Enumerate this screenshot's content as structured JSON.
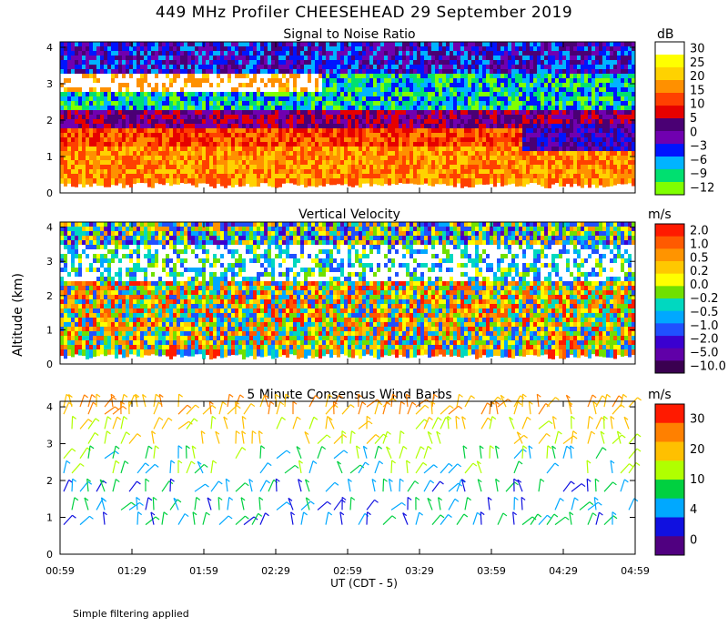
{
  "header": {
    "title": "449 MHz Profiler CHEESEHEAD 29 September 2019",
    "y_axis_label": "Altitude (km)",
    "x_axis_label": "UT  (CDT - 5)",
    "footnote": "Simple filtering applied"
  },
  "chart_data": [
    {
      "id": "snr",
      "type": "heatmap",
      "title": "Signal to Noise Ratio",
      "unit": "dB",
      "xlabel": "UT (CDT - 5)",
      "ylabel": "Altitude (km)",
      "x_ticks": [
        "00:59",
        "01:29",
        "01:59",
        "02:29",
        "02:59",
        "03:29",
        "03:59",
        "04:29",
        "04:59"
      ],
      "y_ticks": [
        "0",
        "1",
        "2",
        "3",
        "4"
      ],
      "ylim": [
        0,
        4.15
      ],
      "colorbar": {
        "levels": [
          "30",
          "25",
          "20",
          "15",
          "10",
          "5",
          "0",
          "−3",
          "−6",
          "−9",
          "−12"
        ],
        "colors": [
          "#ffffff",
          "#ffff00",
          "#ffd200",
          "#ff9000",
          "#ff4000",
          "#e60000",
          "#4a0074",
          "#7000b0",
          "#0014ff",
          "#00b4ff",
          "#00e070",
          "#80ff00"
        ]
      },
      "summary": "Strong SNR (10-20 dB) below ~2 km, decreasing to 0-5 dB near 2 km, low (-6 to -12) between 2-3 km, high (>25 dB) band near 3-3.3 km early."
    },
    {
      "id": "vvel",
      "type": "heatmap",
      "title": "Vertical Velocity",
      "unit": "m/s",
      "x_ticks": [
        "00:59",
        "01:29",
        "01:59",
        "02:29",
        "02:59",
        "03:29",
        "03:59",
        "04:29",
        "04:59"
      ],
      "y_ticks": [
        "0",
        "1",
        "2",
        "3",
        "4"
      ],
      "ylim": [
        0,
        4.15
      ],
      "colorbar": {
        "levels": [
          "2.0",
          "1.0",
          "0.5",
          "0.2",
          "0.0",
          "−0.2",
          "−0.5",
          "−1.0",
          "−2.0",
          "−5.0",
          "−10.0"
        ],
        "colors": [
          "#ff1a00",
          "#ff5a00",
          "#ff9400",
          "#ffc800",
          "#ffff00",
          "#70e000",
          "#00d8c0",
          "#00a8ff",
          "#2050ff",
          "#3a00d0",
          "#6000a8",
          "#3a0050"
        ]
      },
      "summary": "Mixed small vertical velocities (-0.5 to +0.5 m/s) below ~2.5 km; white (missing) gaps near 2.5-3.5 km; strong downward streaks near 4 km."
    },
    {
      "id": "wind",
      "type": "scatter",
      "title": "5 Minute Consensus Wind Barbs",
      "unit": "m/s",
      "x_ticks": [
        "00:59",
        "01:29",
        "01:59",
        "02:29",
        "02:59",
        "03:29",
        "03:59",
        "04:29",
        "04:59"
      ],
      "y_ticks": [
        "0",
        "1",
        "2",
        "3",
        "4"
      ],
      "ylim": [
        0,
        4.15
      ],
      "colorbar": {
        "levels": [
          "30",
          "20",
          "10",
          "4",
          "0"
        ],
        "colors": [
          "#ff1a00",
          "#ff8000",
          "#ffc000",
          "#b0ff00",
          "#00d040",
          "#00a8ff",
          "#1010e0",
          "#500080"
        ]
      },
      "summary": "Wind speeds 20-30 m/s near 4 km, 10-20 m/s near 3-3.5 km, 4-10 m/s near 1-2.5 km, light winds below 1 km."
    }
  ]
}
